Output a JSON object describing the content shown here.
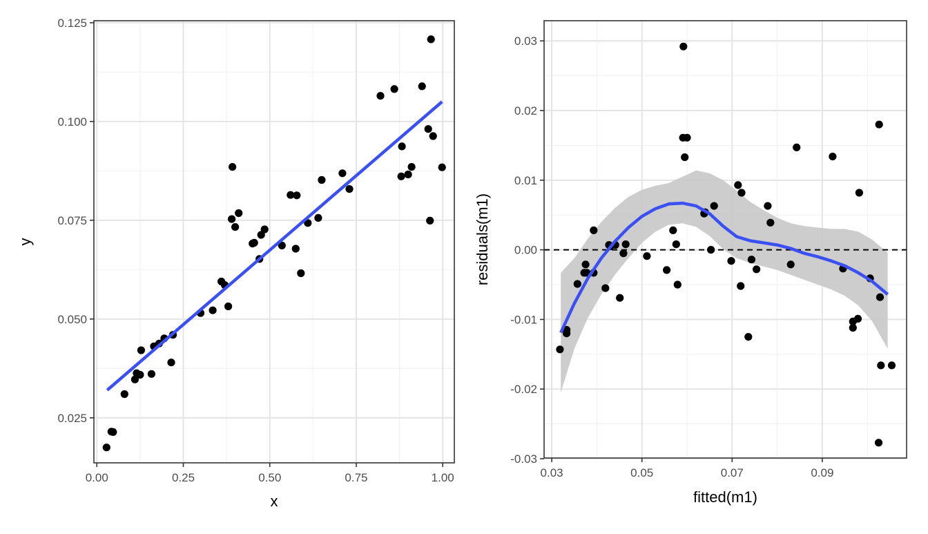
{
  "chart_data": [
    {
      "type": "scatter",
      "xlabel": "x",
      "ylabel": "y",
      "xlim": [
        -0.0085,
        1.0335
      ],
      "ylim": [
        0.0136,
        0.1255
      ],
      "x_ticks": [
        0.0,
        0.25,
        0.5,
        0.75,
        1.0
      ],
      "x_tick_labels": [
        "0.00",
        "0.25",
        "0.50",
        "0.75",
        "1.00"
      ],
      "y_ticks": [
        0.025,
        0.05,
        0.075,
        0.1,
        0.125
      ],
      "y_tick_labels": [
        "0.025",
        "0.050",
        "0.075",
        "0.100",
        "0.125"
      ],
      "grid": true,
      "points": {
        "x": [
          0.028,
          0.042,
          0.047,
          0.08,
          0.11,
          0.115,
          0.125,
          0.128,
          0.158,
          0.165,
          0.18,
          0.195,
          0.215,
          0.22,
          0.3,
          0.335,
          0.36,
          0.37,
          0.38,
          0.39,
          0.392,
          0.4,
          0.41,
          0.45,
          0.455,
          0.47,
          0.475,
          0.485,
          0.535,
          0.56,
          0.575,
          0.578,
          0.59,
          0.61,
          0.64,
          0.65,
          0.71,
          0.73,
          0.82,
          0.86,
          0.88,
          0.882,
          0.9,
          0.91,
          0.94,
          0.958,
          0.963,
          0.966,
          0.972,
          0.998
        ],
        "y": [
          0.0175,
          0.0215,
          0.0214,
          0.031,
          0.0347,
          0.0363,
          0.0359,
          0.0421,
          0.0361,
          0.0431,
          0.0438,
          0.0451,
          0.039,
          0.046,
          0.0515,
          0.0522,
          0.0595,
          0.0586,
          0.0532,
          0.0753,
          0.0885,
          0.0733,
          0.0768,
          0.0691,
          0.0693,
          0.0652,
          0.0713,
          0.0727,
          0.0686,
          0.0814,
          0.0678,
          0.0813,
          0.0616,
          0.0743,
          0.0756,
          0.0852,
          0.0869,
          0.0829,
          0.1065,
          0.1082,
          0.0861,
          0.0937,
          0.0866,
          0.0885,
          0.1089,
          0.0981,
          0.0749,
          0.1208,
          0.0963,
          0.0884
        ]
      },
      "fit_line": {
        "x": [
          0.03,
          0.998
        ],
        "y": [
          0.032,
          0.105
        ]
      }
    },
    {
      "type": "scatter",
      "xlabel": "fitted(m1)",
      "ylabel": "residuals(m1)",
      "xlim": [
        0.0283,
        0.1087
      ],
      "ylim": [
        -0.0299,
        0.0329
      ],
      "x_ticks": [
        0.03,
        0.05,
        0.07,
        0.09
      ],
      "x_tick_labels": [
        "0.03",
        "0.05",
        "0.07",
        "0.09"
      ],
      "y_ticks": [
        -0.03,
        -0.02,
        -0.01,
        0.0,
        0.01,
        0.02,
        0.03
      ],
      "y_tick_labels": [
        "-0.03",
        "-0.02",
        "-0.01",
        "0.00",
        "0.01",
        "0.02",
        "0.03"
      ],
      "grid": true,
      "hline": 0.0,
      "points": {
        "x": [
          0.0318,
          0.0333,
          0.0333,
          0.0357,
          0.0372,
          0.0375,
          0.0378,
          0.0393,
          0.0393,
          0.0419,
          0.0427,
          0.043,
          0.0441,
          0.0451,
          0.0459,
          0.0464,
          0.0511,
          0.0555,
          0.0569,
          0.0576,
          0.0579,
          0.0591,
          0.0592,
          0.0595,
          0.06,
          0.0638,
          0.064,
          0.0653,
          0.066,
          0.0698,
          0.0713,
          0.0719,
          0.0721,
          0.0736,
          0.0743,
          0.0754,
          0.0779,
          0.0785,
          0.083,
          0.0843,
          0.0923,
          0.0946,
          0.0968,
          0.0968,
          0.0979,
          0.0982,
          0.1006,
          0.1025,
          0.1026,
          0.1028,
          0.103,
          0.1054
        ],
        "y": [
          -0.0143,
          -0.0115,
          -0.012,
          -0.0049,
          -0.0033,
          -0.0021,
          -0.0033,
          0.0028,
          -0.0033,
          -0.0055,
          0.0007,
          0.0005,
          0.0007,
          -0.0069,
          -0.0005,
          0.0008,
          -0.0009,
          -0.0029,
          0.0028,
          0.0008,
          -0.005,
          0.0161,
          0.0292,
          0.0133,
          0.0161,
          0.0052,
          0.0054,
          0.0,
          0.0063,
          -0.0016,
          0.0093,
          -0.0052,
          0.0082,
          -0.0125,
          -0.0014,
          -0.0028,
          0.0063,
          0.0039,
          -0.0021,
          0.0147,
          0.0134,
          -0.0027,
          -0.0103,
          -0.0112,
          -0.0099,
          0.0082,
          -0.0041,
          -0.0277,
          0.018,
          -0.0068,
          -0.0166,
          -0.0166
        ]
      },
      "smooth": {
        "x": [
          0.032,
          0.035,
          0.038,
          0.041,
          0.044,
          0.047,
          0.05,
          0.053,
          0.056,
          0.059,
          0.062,
          0.065,
          0.068,
          0.071,
          0.074,
          0.077,
          0.08,
          0.083,
          0.086,
          0.089,
          0.092,
          0.095,
          0.098,
          0.101,
          0.1045
        ],
        "y": [
          -0.0119,
          -0.0077,
          -0.0041,
          -0.0012,
          0.0012,
          0.0032,
          0.0048,
          0.0059,
          0.0066,
          0.0067,
          0.0063,
          0.0052,
          0.0034,
          0.0019,
          0.0013,
          0.001,
          0.0007,
          0.0002,
          -0.0005,
          -0.001,
          -0.0016,
          -0.0023,
          -0.0033,
          -0.0045,
          -0.0064
        ],
        "lower": [
          -0.0205,
          -0.0142,
          -0.0098,
          -0.0064,
          -0.0036,
          -0.0012,
          0.001,
          0.0026,
          0.0036,
          0.0038,
          0.0033,
          0.002,
          0.0001,
          -0.0012,
          -0.0019,
          -0.0024,
          -0.0029,
          -0.0036,
          -0.0043,
          -0.005,
          -0.0057,
          -0.0066,
          -0.008,
          -0.0102,
          -0.0142
        ],
        "upper": [
          -0.0033,
          -0.0012,
          0.0016,
          0.004,
          0.006,
          0.0076,
          0.0086,
          0.0092,
          0.0096,
          0.0105,
          0.0114,
          0.011,
          0.01,
          0.0085,
          0.0069,
          0.0057,
          0.0046,
          0.0038,
          0.0034,
          0.0032,
          0.003,
          0.003,
          0.0026,
          0.0015,
          -0.0004
        ]
      }
    }
  ],
  "colors": {
    "point": "#000000",
    "fit_line": "#3a50f2",
    "ribbon": "#c8c8c8",
    "grid_major": "#e4e4e4",
    "grid_minor": "#f2f2f2",
    "panel_border": "#333333",
    "hline": "#000000"
  }
}
